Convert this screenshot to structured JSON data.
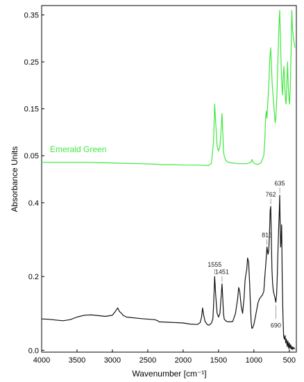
{
  "chart_data": {
    "type": "line",
    "xlabel": "Wavenumber [cm⁻¹]",
    "ylabel": "Absorbance Units",
    "x_ticks": [
      "4000",
      "3500",
      "3000",
      "2500",
      "2000",
      "1500",
      "1000",
      "500"
    ],
    "xlim": [
      4000,
      400
    ],
    "top_panel": {
      "series_name": "Emerald Green",
      "color": "#3ee83e",
      "ylim": [
        0.0,
        0.37
      ],
      "y_ticks": [
        "0.35",
        "0.25",
        "0.15",
        "0.05"
      ],
      "x": [
        4000,
        3700,
        3400,
        3100,
        2900,
        2600,
        2400,
        2300,
        2150,
        2000,
        1800,
        1640,
        1600,
        1570,
        1555,
        1540,
        1520,
        1500,
        1480,
        1465,
        1451,
        1440,
        1430,
        1420,
        1400,
        1370,
        1330,
        1280,
        1200,
        1100,
        1040,
        1030,
        1000,
        950,
        900,
        860,
        845,
        835,
        826,
        816,
        805,
        790,
        775,
        762,
        752,
        740,
        725,
        710,
        700,
        690,
        675,
        660,
        645,
        635,
        625,
        615,
        605,
        595,
        585,
        575,
        565,
        555,
        545,
        535,
        525,
        515,
        505,
        495,
        485,
        475,
        465,
        455,
        440,
        420
      ],
      "y": [
        0.036,
        0.036,
        0.036,
        0.035,
        0.034,
        0.033,
        0.032,
        0.031,
        0.031,
        0.03,
        0.03,
        0.029,
        0.034,
        0.08,
        0.16,
        0.12,
        0.07,
        0.06,
        0.07,
        0.1,
        0.14,
        0.1,
        0.06,
        0.05,
        0.04,
        0.037,
        0.035,
        0.034,
        0.033,
        0.033,
        0.036,
        0.042,
        0.034,
        0.031,
        0.035,
        0.05,
        0.085,
        0.13,
        0.145,
        0.13,
        0.16,
        0.2,
        0.26,
        0.28,
        0.24,
        0.2,
        0.17,
        0.14,
        0.12,
        0.13,
        0.18,
        0.26,
        0.33,
        0.36,
        0.3,
        0.24,
        0.2,
        0.18,
        0.22,
        0.24,
        0.2,
        0.17,
        0.16,
        0.2,
        0.25,
        0.2,
        0.17,
        0.16,
        0.2,
        0.27,
        0.36,
        0.32,
        0.3,
        0.28
      ]
    },
    "bottom_panel": {
      "color": "#111111",
      "ylim": [
        -0.005,
        0.46
      ],
      "y_ticks": [
        "0.4",
        "0.2",
        "0.0"
      ],
      "x": [
        4000,
        3900,
        3800,
        3700,
        3600,
        3500,
        3400,
        3300,
        3200,
        3100,
        3000,
        2960,
        2925,
        2900,
        2870,
        2850,
        2800,
        2600,
        2400,
        2360,
        2340,
        2200,
        2000,
        1900,
        1800,
        1760,
        1740,
        1725,
        1710,
        1690,
        1660,
        1640,
        1620,
        1600,
        1580,
        1570,
        1555,
        1540,
        1520,
        1500,
        1480,
        1465,
        1451,
        1440,
        1430,
        1420,
        1400,
        1380,
        1360,
        1340,
        1300,
        1260,
        1230,
        1215,
        1200,
        1180,
        1160,
        1140,
        1125,
        1110,
        1100,
        1090,
        1075,
        1060,
        1050,
        1040,
        1030,
        1020,
        1000,
        980,
        960,
        940,
        920,
        900,
        880,
        860,
        845,
        830,
        816,
        800,
        790,
        780,
        770,
        762,
        755,
        745,
        735,
        725,
        712,
        700,
        690,
        680,
        670,
        660,
        650,
        642,
        635,
        630,
        622,
        615,
        608,
        600,
        590,
        580,
        570,
        560,
        550,
        540,
        530,
        520,
        510,
        500,
        490,
        480,
        470,
        460,
        450,
        440,
        420
      ],
      "y": [
        0.085,
        0.084,
        0.082,
        0.08,
        0.083,
        0.09,
        0.095,
        0.096,
        0.094,
        0.092,
        0.095,
        0.105,
        0.115,
        0.105,
        0.1,
        0.095,
        0.09,
        0.086,
        0.083,
        0.08,
        0.077,
        0.076,
        0.074,
        0.071,
        0.07,
        0.075,
        0.09,
        0.115,
        0.095,
        0.078,
        0.07,
        0.068,
        0.07,
        0.074,
        0.085,
        0.12,
        0.2,
        0.15,
        0.1,
        0.09,
        0.1,
        0.14,
        0.18,
        0.14,
        0.1,
        0.085,
        0.08,
        0.078,
        0.077,
        0.077,
        0.078,
        0.1,
        0.14,
        0.17,
        0.16,
        0.12,
        0.1,
        0.14,
        0.19,
        0.21,
        0.22,
        0.25,
        0.24,
        0.18,
        0.13,
        0.08,
        0.06,
        0.06,
        0.07,
        0.09,
        0.11,
        0.13,
        0.14,
        0.145,
        0.15,
        0.16,
        0.2,
        0.24,
        0.28,
        0.26,
        0.27,
        0.32,
        0.38,
        0.39,
        0.32,
        0.22,
        0.18,
        0.16,
        0.15,
        0.14,
        0.13,
        0.15,
        0.2,
        0.27,
        0.33,
        0.37,
        0.42,
        0.35,
        0.28,
        0.3,
        0.34,
        0.2,
        0.1,
        0.04,
        0.03,
        0.04,
        0.02,
        0.03,
        0.01,
        0.025,
        0.005,
        0.02,
        0.005,
        0.015,
        0.003,
        0.01,
        0.002,
        0.008,
        0.003
      ]
    },
    "annotations": [
      {
        "label": "635",
        "x": 635,
        "y": 0.42
      },
      {
        "label": "762",
        "x": 762,
        "y": 0.39
      },
      {
        "label": "816",
        "x": 816,
        "y": 0.28
      },
      {
        "label": "1555",
        "x": 1555,
        "y": 0.2
      },
      {
        "label": "1451",
        "x": 1451,
        "y": 0.18
      },
      {
        "label": "690",
        "x": 690,
        "y": 0.13
      }
    ]
  }
}
